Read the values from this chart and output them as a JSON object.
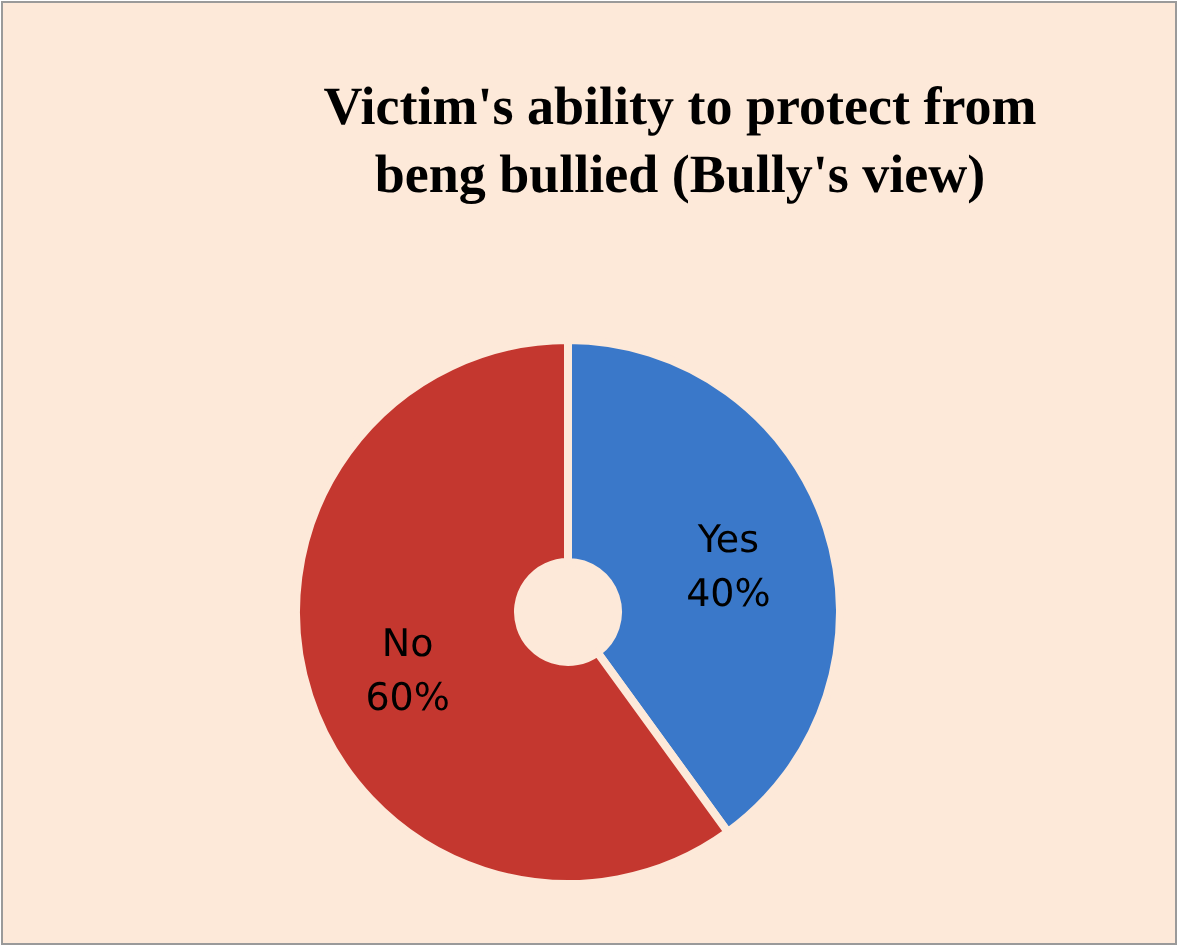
{
  "chart_data": {
    "type": "donut",
    "title": "Victim's ability to protect from beng bullied (Bully's view)",
    "categories": [
      "Yes",
      "No"
    ],
    "values": [
      40,
      60
    ],
    "colors": [
      "#3a78c9",
      "#c4372f"
    ],
    "value_labels": [
      "40%",
      "60%"
    ]
  }
}
